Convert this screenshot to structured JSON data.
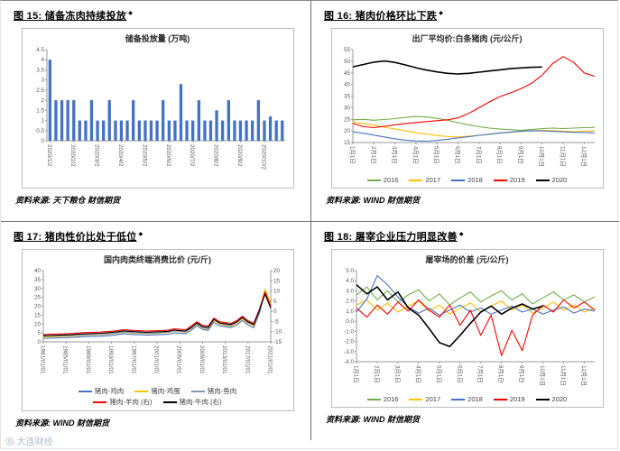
{
  "page": {
    "watermark": "大连财经"
  },
  "icons": {
    "title_marker": "◆",
    "watermark_logo": "◎"
  },
  "panels": [
    {
      "title": "图 15: 储备冻肉持续投放",
      "source": "资料来源: 天下粮仓  财信期货"
    },
    {
      "title": "图 16: 猪肉价格环比下跌",
      "source": "资料来源: WIND  财信期货"
    },
    {
      "title": "图 17: 猪肉性价比处于低位",
      "source": "资料来源: WIND  财信期货"
    },
    {
      "title": "图 18: 屠宰企业压力明显改善",
      "source": "资料来源: WIND  财信期货"
    }
  ],
  "chart_data": [
    {
      "type": "bar",
      "title": "储备投放量 (万吨)",
      "ylim": [
        0,
        4.5
      ],
      "yticks": [
        "0",
        "0.5",
        "1",
        "1.5",
        "2",
        "2.5",
        "3",
        "3.5",
        "4",
        "4.5"
      ],
      "categories": [
        "2020/1/2",
        "",
        "",
        "",
        "2020/2/2",
        "",
        "",
        "",
        "2020/3/2",
        "",
        "",
        "",
        "2020/4/2",
        "",
        "",
        "",
        "2020/5/2",
        "",
        "",
        "",
        "2020/6/2",
        "",
        "",
        "",
        "2020/7/2",
        "",
        "",
        "",
        "2020/8/2",
        "",
        "",
        "",
        "2020/9/2",
        "",
        "",
        "",
        "2020/10/2",
        "",
        "",
        ""
      ],
      "legend": false,
      "series": [
        {
          "name": "储备投放量",
          "color": "#4472c4",
          "values": [
            4.0,
            2.0,
            2.0,
            2.0,
            2.0,
            1.0,
            1.0,
            2.0,
            1.0,
            1.0,
            2.0,
            1.0,
            1.0,
            1.0,
            2.0,
            1.0,
            1.0,
            1.0,
            1.0,
            2.0,
            1.0,
            1.0,
            2.8,
            1.0,
            1.0,
            2.0,
            1.0,
            1.0,
            1.5,
            1.0,
            2.0,
            1.0,
            1.0,
            1.0,
            1.0,
            2.0,
            1.0,
            1.2,
            1.0,
            1.0
          ]
        }
      ]
    },
    {
      "type": "line",
      "title": "出厂平均价:白条猪肉 (元/公斤)",
      "ylim": [
        15,
        55
      ],
      "yticks": [
        "15",
        "20",
        "25",
        "30",
        "35",
        "40",
        "45",
        "50",
        "55"
      ],
      "categories": [
        "1月1日",
        "",
        "2月1日",
        "",
        "3月1日",
        "",
        "4月1日",
        "",
        "5月1日",
        "",
        "6月1日",
        "",
        "7月1日",
        "",
        "8月1日",
        "",
        "9月1日",
        "",
        "10月1日",
        "",
        "11月1日",
        "",
        "12月1日",
        ""
      ],
      "legend": true,
      "series": [
        {
          "name": "2016",
          "color": "#70ad47",
          "values": [
            24.8,
            25.0,
            24.6,
            24.9,
            25.3,
            25.8,
            26.2,
            26.0,
            25.4,
            24.6,
            23.6,
            22.6,
            21.8,
            21.2,
            20.8,
            20.5,
            20.3,
            20.6,
            21.0,
            21.2,
            21.0,
            21.2,
            21.4,
            21.5
          ]
        },
        {
          "name": "2017",
          "color": "#ffc000",
          "values": [
            23.8,
            23.2,
            22.4,
            21.6,
            20.8,
            20.0,
            19.2,
            18.6,
            18.0,
            17.6,
            17.4,
            17.7,
            18.1,
            18.5,
            19.0,
            19.4,
            19.8,
            20.1,
            20.3,
            20.1,
            19.9,
            19.7,
            19.9,
            20.1
          ]
        },
        {
          "name": "2018",
          "color": "#4472c4",
          "values": [
            19.6,
            19.0,
            18.2,
            17.4,
            16.6,
            16.0,
            15.7,
            15.6,
            15.9,
            16.4,
            17.0,
            17.5,
            18.1,
            18.6,
            19.1,
            19.5,
            19.9,
            20.1,
            20.0,
            19.8,
            19.6,
            19.4,
            19.3,
            19.2
          ]
        },
        {
          "name": "2019",
          "color": "#ff0000",
          "values": [
            23.2,
            21.8,
            21.4,
            22.0,
            22.6,
            23.2,
            23.6,
            24.0,
            24.4,
            24.8,
            25.6,
            27.5,
            30.0,
            32.5,
            34.8,
            36.4,
            38.2,
            40.5,
            44.0,
            49.0,
            52.0,
            49.5,
            45.0,
            43.5
          ]
        },
        {
          "name": "2020",
          "color": "#000000",
          "values": [
            47.6,
            48.6,
            49.6,
            50.1,
            49.5,
            48.4,
            47.2,
            46.2,
            45.4,
            44.8,
            44.5,
            44.8,
            45.3,
            45.8,
            46.3,
            46.8,
            47.1,
            47.4,
            47.5
          ]
        }
      ]
    },
    {
      "type": "line",
      "title": "国内肉类终端消费比价 (元/斤)",
      "ylim": [
        0,
        40
      ],
      "yticks": [
        "0",
        "5",
        "10",
        "15",
        "20",
        "25",
        "30",
        "35",
        "40"
      ],
      "y2lim": [
        -15,
        20
      ],
      "y2ticks": [
        "-15",
        "-10",
        "-5",
        "0",
        "5",
        "10",
        "15",
        "20"
      ],
      "categories": [
        "1981/01/01",
        "",
        "",
        "",
        "1985/01/01",
        "",
        "",
        "",
        "1989/01/01",
        "",
        "",
        "",
        "1993/01/01",
        "",
        "",
        "",
        "1997/01/01",
        "",
        "",
        "",
        "2001/01/01",
        "",
        "",
        "",
        "2005/01/01",
        "",
        "",
        "",
        "2009/01/01",
        "",
        "",
        "",
        "2013/01/01",
        "",
        "",
        "",
        "2017/01/01",
        "",
        "",
        "",
        "2021/01/01"
      ],
      "legend": true,
      "series": [
        {
          "name": "猪肉-鸡肉",
          "color": "#4472c4",
          "values": [
            2.0,
            2.1,
            2.2,
            2.3,
            2.4,
            2.5,
            2.7,
            2.9,
            3.0,
            3.1,
            3.2,
            3.4,
            3.6,
            4.0,
            4.5,
            4.3,
            4.1,
            4.0,
            3.8,
            3.9,
            4.0,
            4.1,
            4.3,
            5.0,
            4.8,
            4.5,
            6.5,
            9.0,
            7.0,
            6.5,
            11.0,
            9.0,
            8.5,
            8.0,
            9.5,
            12.0,
            9.5,
            8.0,
            16.0,
            28.5,
            20.0
          ]
        },
        {
          "name": "猪肉-鸡蛋",
          "color": "#ffc000",
          "values": [
            2.8,
            2.9,
            3.0,
            3.1,
            3.2,
            3.3,
            3.5,
            3.7,
            3.8,
            3.9,
            4.0,
            4.2,
            4.4,
            4.8,
            5.3,
            5.1,
            4.9,
            4.8,
            4.6,
            4.7,
            4.8,
            5.0,
            5.2,
            6.0,
            5.7,
            5.4,
            7.2,
            9.8,
            7.8,
            7.2,
            12.0,
            10.0,
            9.2,
            8.8,
            10.5,
            13.0,
            10.5,
            9.0,
            17.5,
            29.5,
            21.5
          ]
        },
        {
          "name": "猪肉-鱼肉",
          "color": "#8496b0",
          "values": [
            3.2,
            3.3,
            3.3,
            3.4,
            3.5,
            3.6,
            3.7,
            3.9,
            4.0,
            4.1,
            4.2,
            4.4,
            4.6,
            5.0,
            5.5,
            5.3,
            5.1,
            5.0,
            4.8,
            4.9,
            5.0,
            5.2,
            5.4,
            6.2,
            5.9,
            5.6,
            7.5,
            10.2,
            8.0,
            7.5,
            12.5,
            10.5,
            9.6,
            9.2,
            11.0,
            13.5,
            11.0,
            9.5,
            18.0,
            27.5,
            19.5
          ]
        },
        {
          "name": "猪肉-羊肉 (右)",
          "color": "#ff0000",
          "axis": "right",
          "values": [
            -11.4,
            -11.3,
            -11.2,
            -11.1,
            -11.0,
            -10.9,
            -10.7,
            -10.5,
            -10.4,
            -10.3,
            -10.2,
            -10.0,
            -9.8,
            -9.5,
            -9.0,
            -9.2,
            -9.4,
            -9.5,
            -9.7,
            -9.6,
            -9.5,
            -9.4,
            -9.2,
            -8.6,
            -8.8,
            -9.1,
            -7.3,
            -5.1,
            -6.9,
            -7.3,
            -3.3,
            -5.1,
            -5.5,
            -5.9,
            -4.6,
            -2.4,
            -4.6,
            -5.9,
            1.0,
            9.5,
            2.5
          ]
        },
        {
          "name": "猪肉-牛肉 (右)",
          "color": "#000000",
          "axis": "right",
          "values": [
            -12.0,
            -11.9,
            -11.8,
            -11.7,
            -11.6,
            -11.5,
            -11.3,
            -11.1,
            -11.0,
            -10.9,
            -10.8,
            -10.6,
            -10.4,
            -10.1,
            -9.6,
            -9.8,
            -10.0,
            -10.1,
            -10.3,
            -10.2,
            -10.1,
            -10.0,
            -9.8,
            -9.2,
            -9.4,
            -9.7,
            -7.9,
            -5.7,
            -7.5,
            -7.9,
            -3.9,
            -5.7,
            -6.1,
            -6.5,
            -5.2,
            -3.0,
            -5.2,
            -6.5,
            0.4,
            8.5,
            1.5
          ]
        }
      ]
    },
    {
      "type": "line",
      "title": "屠宰场的价差 (元/公斤)",
      "ylim": [
        -4,
        5
      ],
      "yticks": [
        "-4.0",
        "-3.0",
        "-2.0",
        "-1.0",
        "0.0",
        "1.0",
        "2.0",
        "3.0",
        "4.0",
        "5.0"
      ],
      "categories": [
        "1月1日",
        "",
        "2月1日",
        "",
        "3月1日",
        "",
        "4月1日",
        "",
        "5月1日",
        "",
        "6月1日",
        "",
        "7月1日",
        "",
        "8月1日",
        "",
        "9月1日",
        "",
        "10月1日",
        "",
        "11月1日",
        "",
        "12月1日",
        ""
      ],
      "legend": true,
      "series": [
        {
          "name": "2016",
          "color": "#70ad47",
          "values": [
            2.6,
            3.4,
            2.1,
            3.0,
            1.9,
            2.6,
            3.1,
            2.0,
            2.7,
            1.6,
            2.3,
            2.9,
            1.9,
            2.5,
            3.0,
            2.1,
            2.7,
            1.7,
            2.3,
            2.9,
            2.1,
            2.6,
            1.9,
            2.4
          ]
        },
        {
          "name": "2017",
          "color": "#ffc000",
          "values": [
            1.6,
            2.1,
            1.1,
            1.8,
            0.9,
            1.5,
            2.0,
            1.0,
            1.6,
            0.7,
            1.3,
            1.8,
            0.9,
            1.5,
            2.0,
            1.1,
            1.6,
            0.8,
            1.3,
            1.9,
            1.1,
            1.6,
            0.9,
            1.3
          ]
        },
        {
          "name": "2018",
          "color": "#4472c4",
          "values": [
            0.9,
            2.2,
            4.5,
            3.6,
            2.4,
            1.4,
            0.8,
            1.3,
            0.6,
            1.1,
            1.6,
            0.9,
            1.3,
            0.7,
            1.1,
            1.5,
            0.9,
            1.2,
            0.7,
            1.1,
            1.4,
            0.8,
            1.2,
            1.0
          ]
        },
        {
          "name": "2019",
          "color": "#ff0000",
          "values": [
            1.3,
            0.4,
            1.6,
            0.7,
            1.9,
            1.0,
            2.1,
            1.1,
            0.4,
            1.6,
            -0.4,
            1.1,
            -1.4,
            0.6,
            -3.4,
            -0.9,
            -2.9,
            0.6,
            1.6,
            0.9,
            2.1,
            1.3,
            1.9,
            1.1
          ]
        },
        {
          "name": "2020",
          "color": "#000000",
          "values": [
            3.6,
            2.7,
            3.4,
            2.1,
            2.9,
            1.3,
            0.6,
            -0.7,
            -2.1,
            -2.5,
            -1.4,
            -0.2,
            0.9,
            1.5,
            0.7,
            1.3,
            1.7,
            1.2,
            1.5
          ]
        }
      ]
    }
  ]
}
